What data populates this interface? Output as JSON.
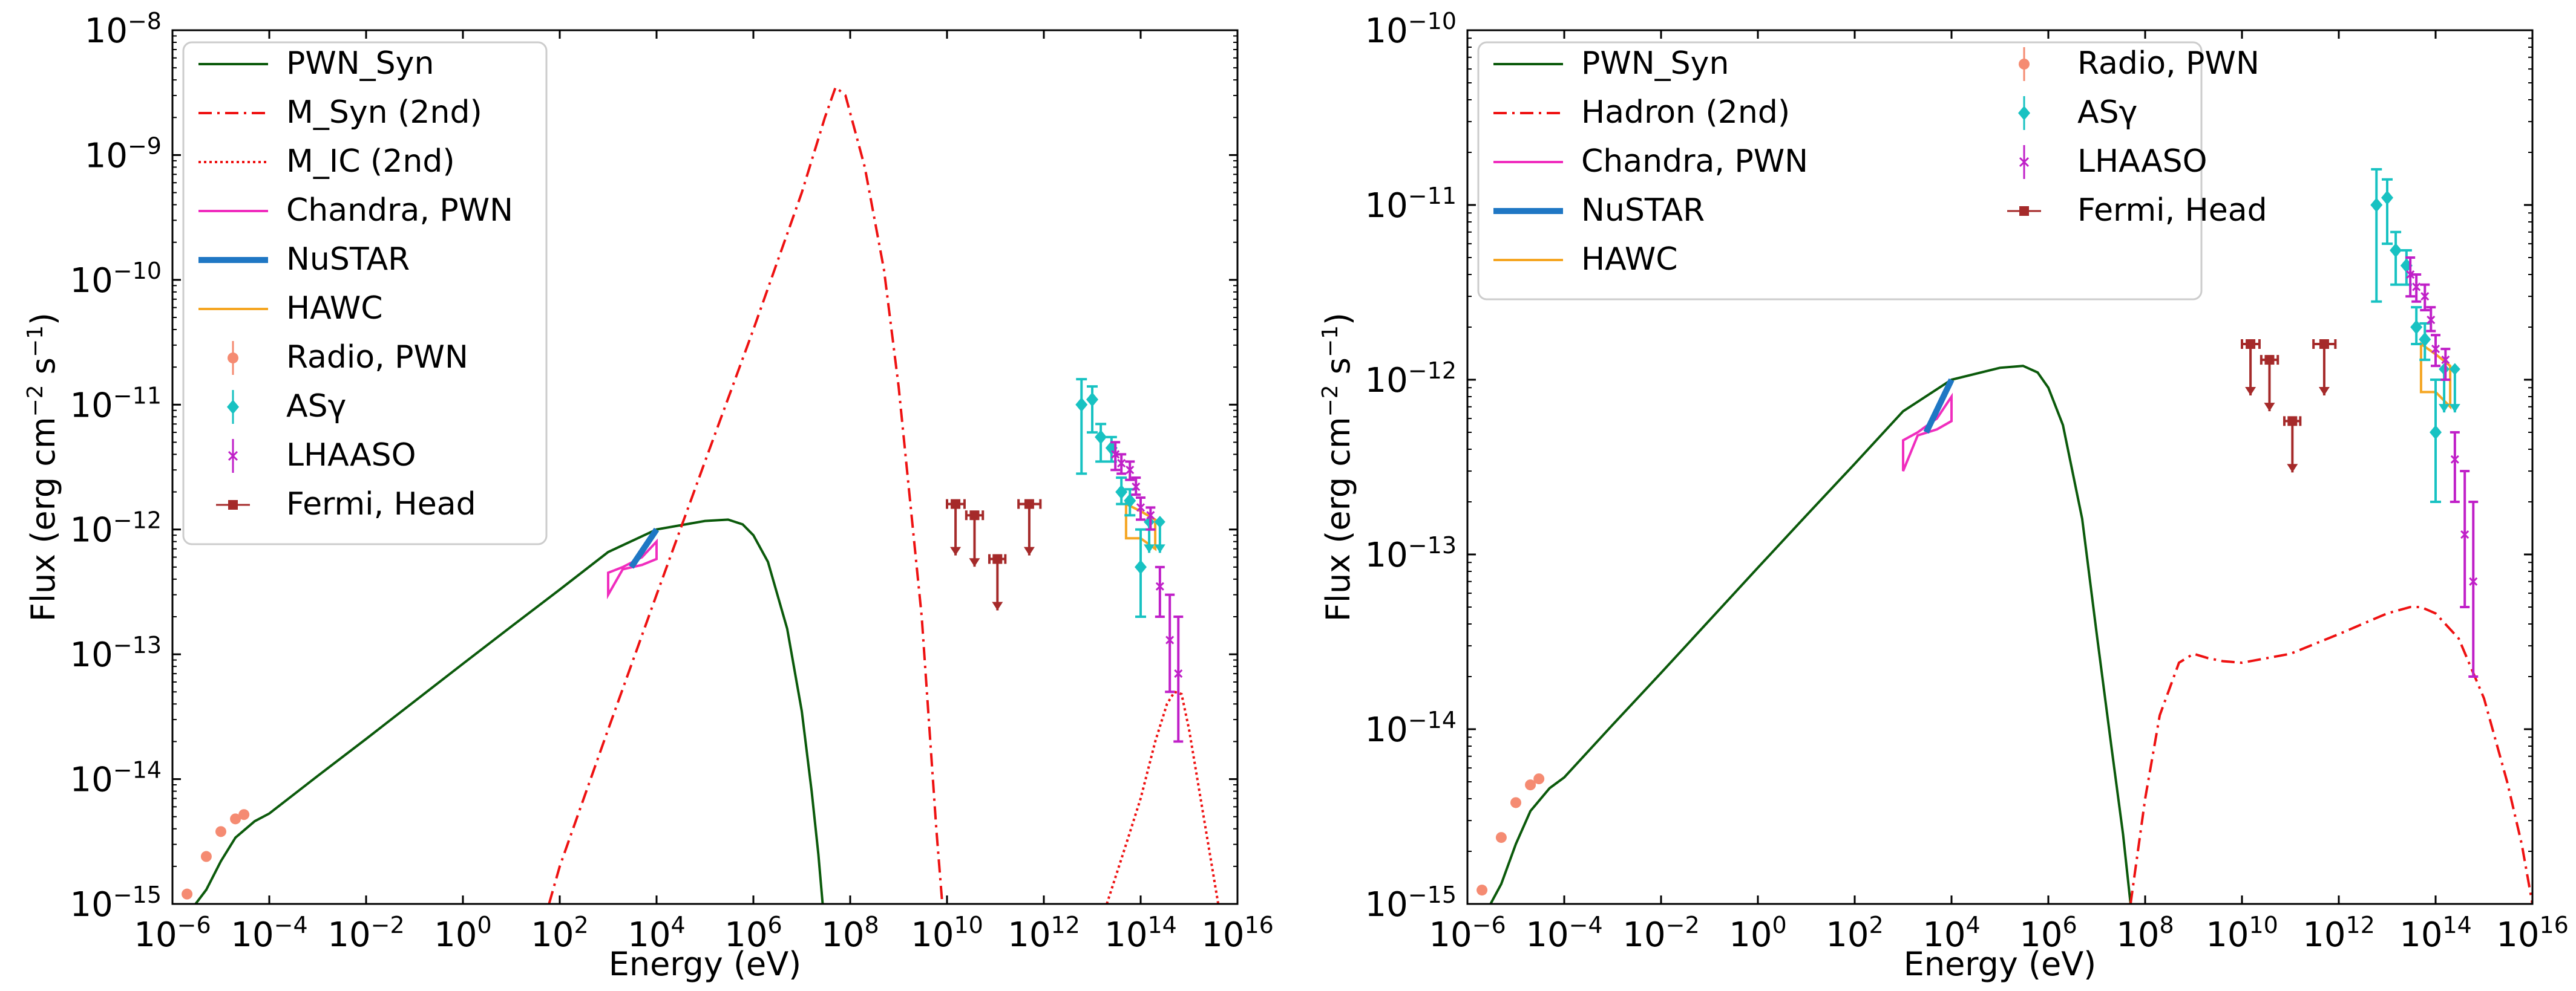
{
  "colors": {
    "pwn_syn": "#0b5a0b",
    "red": "#ee1111",
    "chandra": "#f02dbe",
    "nustar": "#1f77c4",
    "hawc": "#f5a623",
    "radio": "#f58b72",
    "asg": "#18c2c2",
    "lhaaso": "#c020c8",
    "fermi": "#a52a2a"
  },
  "chart_data": [
    {
      "type": "line",
      "xlabel": "Energy (eV)",
      "ylabel": "Flux (erg cm^-2 s^-1)",
      "xscale": "log",
      "yscale": "log",
      "xlim": [
        1e-06,
        1e+16
      ],
      "ylim": [
        1e-15,
        1e-08
      ],
      "x_tick_labels": [
        "10^-6",
        "10^-4",
        "10^-2",
        "10^0",
        "10^2",
        "10^4",
        "10^6",
        "10^8",
        "10^10",
        "10^12",
        "10^14",
        "10^16"
      ],
      "y_tick_labels": [
        "10^-15",
        "10^-14",
        "10^-13",
        "10^-12",
        "10^-11",
        "10^-10",
        "10^-9",
        "10^-8"
      ],
      "legend_position": "upper-left",
      "legend": [
        {
          "label": "PWN_Syn",
          "kind": "line",
          "color": "#0b5a0b",
          "style": "solid"
        },
        {
          "label": "M_Syn (2nd)",
          "kind": "line",
          "color": "#ee1111",
          "style": "dashdot"
        },
        {
          "label": "M_IC (2nd)",
          "kind": "line",
          "color": "#ee1111",
          "style": "dotted"
        },
        {
          "label": "Chandra, PWN",
          "kind": "line",
          "color": "#f02dbe",
          "style": "solid"
        },
        {
          "label": "NuSTAR",
          "kind": "line",
          "color": "#1f77c4",
          "style": "thick"
        },
        {
          "label": "HAWC",
          "kind": "line",
          "color": "#f5a623",
          "style": "solid"
        },
        {
          "label": "Radio, PWN",
          "kind": "marker",
          "color": "#f58b72",
          "marker": "circle"
        },
        {
          "label": "ASγ",
          "kind": "marker",
          "color": "#18c2c2",
          "marker": "diamond"
        },
        {
          "label": "LHAASO",
          "kind": "marker",
          "color": "#c020c8",
          "marker": "x"
        },
        {
          "label": "Fermi, Head",
          "kind": "marker",
          "color": "#a52a2a",
          "marker": "square"
        }
      ],
      "series": [
        {
          "name": "PWN_Syn",
          "style": "solid",
          "color": "#0b5a0b",
          "x": [
            1.5e-06,
            3e-06,
            5e-06,
            1e-05,
            2e-05,
            5e-05,
            0.0001,
            0.001,
            0.01,
            0.1,
            1,
            10,
            100,
            1000.0,
            10000.0,
            100000.0,
            300000.0,
            600000.0,
            1000000.0,
            2000000.0,
            5000000.0,
            10000000.0,
            16000000.0,
            22000000.0,
            27000000.0
          ],
          "y": [
            7e-16,
            1e-15,
            1.3e-15,
            2.2e-15,
            3.4e-15,
            4.6e-15,
            5.3e-15,
            1.06e-14,
            2.1e-14,
            4.2e-14,
            8.4e-14,
            1.67e-13,
            3.3e-13,
            6.6e-13,
            1e-12,
            1.17e-12,
            1.2e-12,
            1.1e-12,
            9e-13,
            5.5e-13,
            1.6e-13,
            3.5e-14,
            8e-15,
            2.5e-15,
            1e-15
          ]
        },
        {
          "name": "M_Syn (2nd)",
          "style": "dashdot",
          "color": "#ee1111",
          "x": [
            60.0,
            100.0,
            1000.0,
            10000.0,
            100000.0,
            1000000.0,
            10000000.0,
            30000000.0,
            50000000.0,
            80000000.0,
            200000000.0,
            500000000.0,
            1000000000.0,
            3000000000.0,
            6000000000.0,
            8000000000.0
          ],
          "y": [
            1e-15,
            2e-15,
            2.5e-14,
            3e-13,
            3.5e-12,
            4e-11,
            5e-10,
            2e-09,
            3.5e-09,
            3e-09,
            8e-10,
            1.2e-10,
            1.4e-11,
            2e-13,
            4e-15,
            1e-15
          ]
        },
        {
          "name": "M_IC (2nd)",
          "style": "dotted",
          "color": "#ee1111",
          "x": [
            20000000000000.0,
            50000000000000.0,
            100000000000000.0,
            200000000000000.0,
            350000000000000.0,
            500000000000000.0,
            700000000000000.0,
            1000000000000000.0,
            2000000000000000.0,
            4000000000000000.0
          ],
          "y": [
            1e-15,
            3e-15,
            7e-15,
            2e-14,
            4e-14,
            5e-14,
            4.8e-14,
            2.5e-14,
            5e-15,
            1e-15
          ]
        }
      ],
      "bands": [
        {
          "name": "Chandra, PWN",
          "color": "#f02dbe",
          "upper": [
            [
              1000.0,
              4.5e-13
            ],
            [
              2000.0,
              5e-13
            ],
            [
              5000.0,
              6e-13
            ],
            [
              10000.0,
              8e-13
            ]
          ],
          "lower": [
            [
              1000.0,
              3e-13
            ],
            [
              2000.0,
              4.8e-13
            ],
            [
              5000.0,
              5.2e-13
            ],
            [
              10000.0,
              5.8e-13
            ]
          ]
        },
        {
          "name": "HAWC",
          "color": "#f5a623",
          "upper": [
            [
              50000000000000.0,
              1.6e-12
            ],
            [
              100000000000000.0,
              1.4e-12
            ],
            [
              200000000000000.0,
              1.2e-12
            ]
          ],
          "lower": [
            [
              50000000000000.0,
              8.5e-13
            ],
            [
              100000000000000.0,
              8.5e-13
            ],
            [
              200000000000000.0,
              7e-13
            ]
          ]
        }
      ],
      "segments": [
        {
          "name": "NuSTAR",
          "color": "#1f77c4",
          "x": [
            3000.0,
            10000.0
          ],
          "y": [
            5e-13,
            1e-12
          ]
        }
      ],
      "radio_points": [
        {
          "x": 2e-06,
          "y": 1.2e-15
        },
        {
          "x": 5e-06,
          "y": 2.4e-15
        },
        {
          "x": 1e-05,
          "y": 3.8e-15
        },
        {
          "x": 2e-05,
          "y": 4.8e-15
        },
        {
          "x": 3e-05,
          "y": 5.2e-15
        }
      ],
      "asg_points": [
        {
          "x": 6000000000000.0,
          "y": 1e-11,
          "ylo": 2.8e-12,
          "yhi": 1.6e-11,
          "ul": false
        },
        {
          "x": 10000000000000.0,
          "y": 1.1e-11,
          "ylo": 6e-12,
          "yhi": 1.4e-11,
          "ul": false
        },
        {
          "x": 15000000000000.0,
          "y": 5.5e-12,
          "ylo": 3.5e-12,
          "yhi": 7e-12,
          "ul": false
        },
        {
          "x": 25000000000000.0,
          "y": 4.5e-12,
          "ylo": 3.5e-12,
          "yhi": 5.5e-12,
          "ul": false
        },
        {
          "x": 40000000000000.0,
          "y": 2e-12,
          "ylo": 1.6e-12,
          "yhi": 2.6e-12,
          "ul": false
        },
        {
          "x": 60000000000000.0,
          "y": 1.7e-12,
          "ylo": 1.3e-12,
          "yhi": 2.1e-12,
          "ul": false
        },
        {
          "x": 100000000000000.0,
          "y": 5e-13,
          "ylo": 2e-13,
          "yhi": 1e-12,
          "ul": false
        },
        {
          "x": 150000000000000.0,
          "y": 1.15e-12,
          "ylo": 6.5e-13,
          "yhi": 1.15e-12,
          "ul": true
        },
        {
          "x": 250000000000000.0,
          "y": 1.15e-12,
          "ylo": 6.5e-13,
          "yhi": 1.15e-12,
          "ul": true
        }
      ],
      "lhaaso_points": [
        {
          "x": 30000000000000.0,
          "y": 4e-12,
          "ylo": 3e-12,
          "yhi": 5e-12
        },
        {
          "x": 40000000000000.0,
          "y": 3.4e-12,
          "ylo": 2.8e-12,
          "yhi": 4e-12
        },
        {
          "x": 60000000000000.0,
          "y": 3e-12,
          "ylo": 2.5e-12,
          "yhi": 3.5e-12
        },
        {
          "x": 80000000000000.0,
          "y": 2.2e-12,
          "ylo": 1.9e-12,
          "yhi": 2.6e-12
        },
        {
          "x": 100000000000000.0,
          "y": 1.5e-12,
          "ylo": 1.2e-12,
          "yhi": 1.8e-12
        },
        {
          "x": 160000000000000.0,
          "y": 1.3e-12,
          "ylo": 1e-12,
          "yhi": 1.5e-12
        },
        {
          "x": 250000000000000.0,
          "y": 3.5e-13,
          "ylo": 2e-13,
          "yhi": 5e-13
        },
        {
          "x": 400000000000000.0,
          "y": 1.3e-13,
          "ylo": 5e-14,
          "yhi": 3e-13
        },
        {
          "x": 600000000000000.0,
          "y": 7e-14,
          "ylo": 2e-14,
          "yhi": 2e-13
        }
      ],
      "fermi_upper_limits": [
        {
          "x": 15000000000.0,
          "xlo": 10000000000.0,
          "xhi": 23000000000.0,
          "y": 1.6e-12
        },
        {
          "x": 37000000000.0,
          "xlo": 25000000000.0,
          "xhi": 55000000000.0,
          "y": 1.3e-12
        },
        {
          "x": 110000000000.0,
          "xlo": 75000000000.0,
          "xhi": 160000000000.0,
          "y": 5.8e-13
        },
        {
          "x": 500000000000.0,
          "xlo": 300000000000.0,
          "xhi": 850000000000.0,
          "y": 1.6e-12
        }
      ]
    },
    {
      "type": "line",
      "xlabel": "Energy (eV)",
      "ylabel": "Flux (erg cm^-2 s^-1)",
      "xscale": "log",
      "yscale": "log",
      "xlim": [
        1e-06,
        1e+16
      ],
      "ylim": [
        1e-15,
        1e-10
      ],
      "x_tick_labels": [
        "10^-6",
        "10^-4",
        "10^-2",
        "10^0",
        "10^2",
        "10^4",
        "10^6",
        "10^8",
        "10^10",
        "10^12",
        "10^14",
        "10^16"
      ],
      "y_tick_labels": [
        "10^-15",
        "10^-14",
        "10^-13",
        "10^-12",
        "10^-11",
        "10^-10"
      ],
      "legend_position": "upper-left",
      "legend": [
        {
          "label": "PWN_Syn",
          "kind": "line",
          "color": "#0b5a0b",
          "style": "solid"
        },
        {
          "label": "Hadron (2nd)",
          "kind": "line",
          "color": "#ee1111",
          "style": "dashdot"
        },
        {
          "label": "Chandra, PWN",
          "kind": "line",
          "color": "#f02dbe",
          "style": "solid"
        },
        {
          "label": "NuSTAR",
          "kind": "line",
          "color": "#1f77c4",
          "style": "thick"
        },
        {
          "label": "HAWC",
          "kind": "line",
          "color": "#f5a623",
          "style": "solid"
        },
        {
          "label": "Radio, PWN",
          "kind": "marker",
          "color": "#f58b72",
          "marker": "circle"
        },
        {
          "label": "ASγ",
          "kind": "marker",
          "color": "#18c2c2",
          "marker": "diamond"
        },
        {
          "label": "LHAASO",
          "kind": "marker",
          "color": "#c020c8",
          "marker": "x"
        },
        {
          "label": "Fermi, Head",
          "kind": "marker",
          "color": "#a52a2a",
          "marker": "square"
        }
      ],
      "series": [
        {
          "name": "PWN_Syn",
          "style": "solid",
          "color": "#0b5a0b",
          "x": [
            1.5e-06,
            3e-06,
            5e-06,
            1e-05,
            2e-05,
            5e-05,
            0.0001,
            0.001,
            0.01,
            0.1,
            1,
            10,
            100,
            1000.0,
            10000.0,
            100000.0,
            300000.0,
            600000.0,
            1000000.0,
            2000000.0,
            5000000.0,
            10000000.0,
            20000000.0,
            35000000.0,
            50000000.0
          ],
          "y": [
            7e-16,
            1e-15,
            1.3e-15,
            2.2e-15,
            3.4e-15,
            4.6e-15,
            5.3e-15,
            1.06e-14,
            2.1e-14,
            4.2e-14,
            8.4e-14,
            1.67e-13,
            3.3e-13,
            6.6e-13,
            1e-12,
            1.17e-12,
            1.2e-12,
            1.1e-12,
            9e-13,
            5.5e-13,
            1.6e-13,
            3.5e-14,
            8e-15,
            2.5e-15,
            1e-15
          ]
        },
        {
          "name": "Hadron (2nd)",
          "style": "dashdot",
          "color": "#ee1111",
          "x": [
            50000000.0,
            100000000.0,
            200000000.0,
            500000000.0,
            1000000000.0,
            2000000000.0,
            4000000000.0,
            10000000000.0,
            100000000000.0,
            1000000000000.0,
            10000000000000.0,
            30000000000000.0,
            50000000000000.0,
            100000000000000.0,
            300000000000000.0,
            1000000000000000.0,
            3000000000000000.0,
            6000000000000000.0,
            1e+16
          ],
          "y": [
            1e-15,
            4e-15,
            1.2e-14,
            2.4e-14,
            2.7e-14,
            2.55e-14,
            2.45e-14,
            2.4e-14,
            2.7e-14,
            3.5e-14,
            4.6e-14,
            5e-14,
            5e-14,
            4.6e-14,
            3.3e-14,
            1.5e-14,
            5e-15,
            2.2e-15,
            1e-15
          ]
        }
      ],
      "bands": [
        {
          "name": "Chandra, PWN",
          "color": "#f02dbe",
          "upper": [
            [
              1000.0,
              4.5e-13
            ],
            [
              2000.0,
              5e-13
            ],
            [
              5000.0,
              6e-13
            ],
            [
              10000.0,
              8e-13
            ]
          ],
          "lower": [
            [
              1000.0,
              3e-13
            ],
            [
              2000.0,
              4.8e-13
            ],
            [
              5000.0,
              5.2e-13
            ],
            [
              10000.0,
              5.8e-13
            ]
          ]
        },
        {
          "name": "HAWC",
          "color": "#f5a623",
          "upper": [
            [
              50000000000000.0,
              1.6e-12
            ],
            [
              100000000000000.0,
              1.4e-12
            ],
            [
              200000000000000.0,
              1.2e-12
            ]
          ],
          "lower": [
            [
              50000000000000.0,
              8.5e-13
            ],
            [
              100000000000000.0,
              8.5e-13
            ],
            [
              200000000000000.0,
              7e-13
            ]
          ]
        }
      ],
      "segments": [
        {
          "name": "NuSTAR",
          "color": "#1f77c4",
          "x": [
            3000.0,
            10000.0
          ],
          "y": [
            5e-13,
            1e-12
          ]
        }
      ],
      "radio_points": [
        {
          "x": 2e-06,
          "y": 1.2e-15
        },
        {
          "x": 5e-06,
          "y": 2.4e-15
        },
        {
          "x": 1e-05,
          "y": 3.8e-15
        },
        {
          "x": 2e-05,
          "y": 4.8e-15
        },
        {
          "x": 3e-05,
          "y": 5.2e-15
        }
      ],
      "asg_points": [
        {
          "x": 6000000000000.0,
          "y": 1e-11,
          "ylo": 2.8e-12,
          "yhi": 1.6e-11,
          "ul": false
        },
        {
          "x": 10000000000000.0,
          "y": 1.1e-11,
          "ylo": 6e-12,
          "yhi": 1.4e-11,
          "ul": false
        },
        {
          "x": 15000000000000.0,
          "y": 5.5e-12,
          "ylo": 3.5e-12,
          "yhi": 7e-12,
          "ul": false
        },
        {
          "x": 25000000000000.0,
          "y": 4.5e-12,
          "ylo": 3.5e-12,
          "yhi": 5.5e-12,
          "ul": false
        },
        {
          "x": 40000000000000.0,
          "y": 2e-12,
          "ylo": 1.6e-12,
          "yhi": 2.6e-12,
          "ul": false
        },
        {
          "x": 60000000000000.0,
          "y": 1.7e-12,
          "ylo": 1.3e-12,
          "yhi": 2.1e-12,
          "ul": false
        },
        {
          "x": 100000000000000.0,
          "y": 5e-13,
          "ylo": 2e-13,
          "yhi": 1e-12,
          "ul": false
        },
        {
          "x": 150000000000000.0,
          "y": 1.15e-12,
          "ylo": 6.5e-13,
          "yhi": 1.15e-12,
          "ul": true
        },
        {
          "x": 250000000000000.0,
          "y": 1.15e-12,
          "ylo": 6.5e-13,
          "yhi": 1.15e-12,
          "ul": true
        }
      ],
      "lhaaso_points": [
        {
          "x": 30000000000000.0,
          "y": 4e-12,
          "ylo": 3e-12,
          "yhi": 5e-12
        },
        {
          "x": 40000000000000.0,
          "y": 3.4e-12,
          "ylo": 2.8e-12,
          "yhi": 4e-12
        },
        {
          "x": 60000000000000.0,
          "y": 3e-12,
          "ylo": 2.5e-12,
          "yhi": 3.5e-12
        },
        {
          "x": 80000000000000.0,
          "y": 2.2e-12,
          "ylo": 1.9e-12,
          "yhi": 2.6e-12
        },
        {
          "x": 100000000000000.0,
          "y": 1.5e-12,
          "ylo": 1.2e-12,
          "yhi": 1.8e-12
        },
        {
          "x": 160000000000000.0,
          "y": 1.3e-12,
          "ylo": 1e-12,
          "yhi": 1.5e-12
        },
        {
          "x": 250000000000000.0,
          "y": 3.5e-13,
          "ylo": 2e-13,
          "yhi": 5e-13
        },
        {
          "x": 400000000000000.0,
          "y": 1.3e-13,
          "ylo": 5e-14,
          "yhi": 3e-13
        },
        {
          "x": 600000000000000.0,
          "y": 7e-14,
          "ylo": 2e-14,
          "yhi": 2e-13
        }
      ],
      "fermi_upper_limits": [
        {
          "x": 15000000000.0,
          "xlo": 10000000000.0,
          "xhi": 23000000000.0,
          "y": 1.6e-12
        },
        {
          "x": 37000000000.0,
          "xlo": 25000000000.0,
          "xhi": 55000000000.0,
          "y": 1.3e-12
        },
        {
          "x": 110000000000.0,
          "xlo": 75000000000.0,
          "xhi": 160000000000.0,
          "y": 5.8e-13
        },
        {
          "x": 500000000000.0,
          "xlo": 300000000000.0,
          "xhi": 850000000000.0,
          "y": 1.6e-12
        }
      ]
    }
  ]
}
